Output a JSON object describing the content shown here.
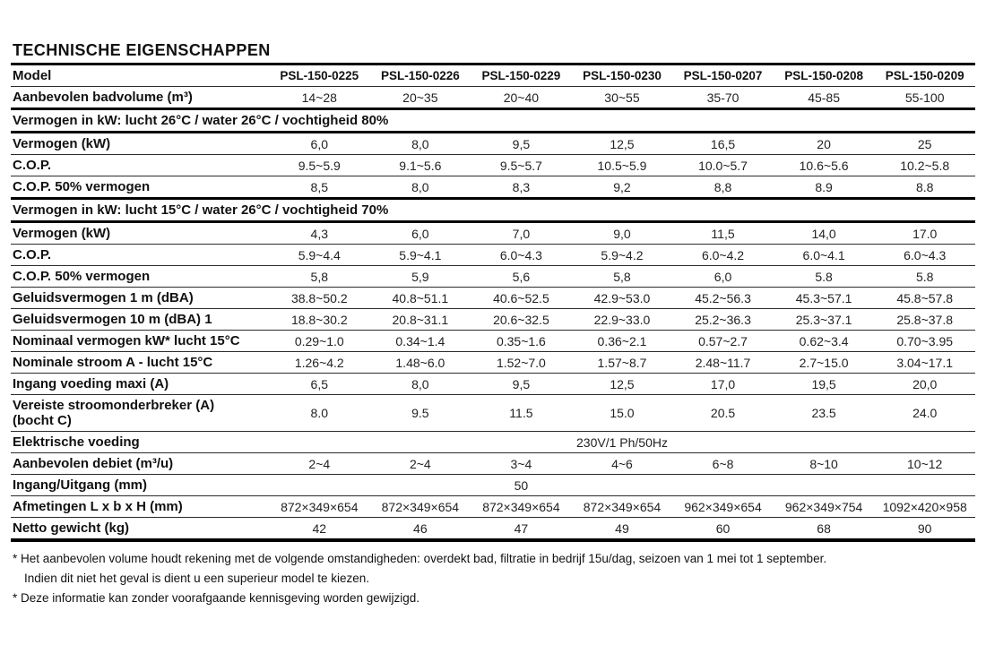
{
  "page_title": "TECHNISCHE EIGENSCHAPPEN",
  "table": {
    "header": {
      "label": "Model",
      "columns": [
        "PSL-150-0225",
        "PSL-150-0226",
        "PSL-150-0229",
        "PSL-150-0230",
        "PSL-150-0207",
        "PSL-150-0208",
        "PSL-150-0209"
      ]
    },
    "rows": [
      {
        "label": "Aanbevolen badvolume (m³)",
        "values": [
          "14~28",
          "20~35",
          "20~40",
          "30~55",
          "35-70",
          "45-85",
          "55-100"
        ]
      },
      {
        "type": "section",
        "label": "Vermogen in kW: lucht 26°C / water 26°C / vochtigheid 80%"
      },
      {
        "label": "Vermogen (kW)",
        "values": [
          "6,0",
          "8,0",
          "9,5",
          "12,5",
          "16,5",
          "20",
          "25"
        ]
      },
      {
        "label": "C.O.P.",
        "values": [
          "9.5~5.9",
          "9.1~5.6",
          "9.5~5.7",
          "10.5~5.9",
          "10.0~5.7",
          "10.6~5.6",
          "10.2~5.8"
        ]
      },
      {
        "label": "C.O.P. 50% vermogen",
        "values": [
          "8,5",
          "8,0",
          "8,3",
          "9,2",
          "8,8",
          "8.9",
          "8.8"
        ]
      },
      {
        "type": "section",
        "label": "Vermogen in kW: lucht 15°C / water 26°C / vochtigheid 70%"
      },
      {
        "label": "Vermogen (kW)",
        "values": [
          "4,3",
          "6,0",
          "7,0",
          "9,0",
          "11,5",
          "14,0",
          "17.0"
        ]
      },
      {
        "label": "C.O.P.",
        "values": [
          "5.9~4.4",
          "5.9~4.1",
          "6.0~4.3",
          "5.9~4.2",
          "6.0~4.2",
          "6.0~4.1",
          "6.0~4.3"
        ]
      },
      {
        "label": "C.O.P. 50% vermogen",
        "values": [
          "5,8",
          "5,9",
          "5,6",
          "5,8",
          "6,0",
          "5.8",
          "5.8"
        ]
      },
      {
        "label": "Geluidsvermogen 1 m (dBA)",
        "values": [
          "38.8~50.2",
          "40.8~51.1",
          "40.6~52.5",
          "42.9~53.0",
          "45.2~56.3",
          "45.3~57.1",
          "45.8~57.8"
        ]
      },
      {
        "label": "Geluidsvermogen 10 m (dBA) 1",
        "values": [
          "18.8~30.2",
          "20.8~31.1",
          "20.6~32.5",
          "22.9~33.0",
          "25.2~36.3",
          "25.3~37.1",
          "25.8~37.8"
        ]
      },
      {
        "label": "Nominaal vermogen kW* lucht 15°C",
        "values": [
          "0.29~1.0",
          "0.34~1.4",
          "0.35~1.6",
          "0.36~2.1",
          "0.57~2.7",
          "0.62~3.4",
          "0.70~3.95"
        ]
      },
      {
        "label": "Nominale stroom A - lucht 15°C",
        "values": [
          "1.26~4.2",
          "1.48~6.0",
          "1.52~7.0",
          "1.57~8.7",
          "2.48~11.7",
          "2.7~15.0",
          "3.04~17.1"
        ]
      },
      {
        "label": "Ingang voeding maxi (A)",
        "values": [
          "6,5",
          "8,0",
          "9,5",
          "12,5",
          "17,0",
          "19,5",
          "20,0"
        ]
      },
      {
        "label": "Vereiste stroomonderbreker (A)\n(bocht C)",
        "values": [
          "8.0",
          "9.5",
          "11.5",
          "15.0",
          "20.5",
          "23.5",
          "24.0"
        ]
      },
      {
        "type": "merged",
        "label": "Elektrische voeding",
        "merged_value": "230V/1 Ph/50Hz"
      },
      {
        "label": "Aanbevolen debiet (m³/u)",
        "values": [
          "2~4",
          "2~4",
          "3~4",
          "4~6",
          "6~8",
          "8~10",
          "10~12"
        ]
      },
      {
        "label": "Ingang/Uitgang (mm)",
        "values": [
          "",
          "",
          "50",
          "",
          "",
          "",
          ""
        ]
      },
      {
        "label": "Afmetingen L x b x H (mm)",
        "values": [
          "872×349×654",
          "872×349×654",
          "872×349×654",
          "872×349×654",
          "962×349×654",
          "962×349×754",
          "1092×420×958"
        ]
      },
      {
        "label": "Netto gewicht (kg)",
        "values": [
          "42",
          "46",
          "47",
          "49",
          "60",
          "68",
          "90"
        ]
      }
    ]
  },
  "footnotes": [
    "* Het aanbevolen volume houdt rekening met de volgende omstandigheden: overdekt bad, filtratie in bedrijf 15u/dag, seizoen van 1 mei tot 1 september.",
    "Indien dit niet het geval is dient u een superieur model te kiezen.",
    "* Deze informatie kan zonder voorafgaande kennisgeving worden gewijzigd."
  ]
}
